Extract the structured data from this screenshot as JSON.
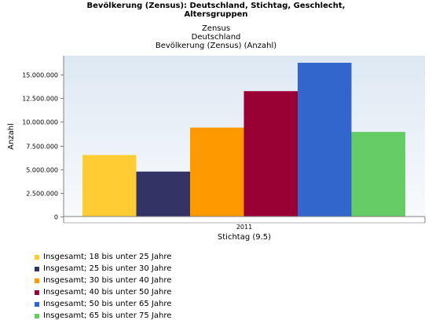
{
  "header": {
    "title_lines": [
      "Bevölkerung (Zensus): Deutschland, Stichtag, Geschlecht,",
      "Altersgruppen"
    ],
    "subtitle_lines": [
      "Zensus",
      "Deutschland",
      "Bevölkerung (Zensus) (Anzahl)"
    ]
  },
  "chart_data": {
    "type": "bar",
    "categories": [
      "2011"
    ],
    "xlabel": "Stichtag (9.5)",
    "ylabel": "Anzahl",
    "ylim": [
      0,
      17000000
    ],
    "yticks": [
      0,
      2500000,
      5000000,
      7500000,
      10000000,
      12500000,
      15000000
    ],
    "ytick_labels": [
      "0",
      "2.500.000",
      "5.000.000",
      "7.500.000",
      "10.000.000",
      "12.500.000",
      "15.000.000"
    ],
    "legend_position": "bottom-left",
    "grid": false,
    "series": [
      {
        "name": "Insgesamt; 18 bis unter 25 Jahre",
        "color": "#ffcc33",
        "values": [
          6500000
        ]
      },
      {
        "name": "Insgesamt; 25 bis unter 30 Jahre",
        "color": "#333366",
        "values": [
          4750000
        ]
      },
      {
        "name": "Insgesamt; 30 bis unter 40 Jahre",
        "color": "#ff9900",
        "values": [
          9400000
        ]
      },
      {
        "name": "Insgesamt; 40 bis unter 50 Jahre",
        "color": "#990033",
        "values": [
          13250000
        ]
      },
      {
        "name": "Insgesamt; 50 bis unter 65 Jahre",
        "color": "#3366cc",
        "values": [
          16250000
        ]
      },
      {
        "name": "Insgesamt; 65 bis unter 75 Jahre",
        "color": "#66cc66",
        "values": [
          8950000
        ]
      }
    ]
  }
}
